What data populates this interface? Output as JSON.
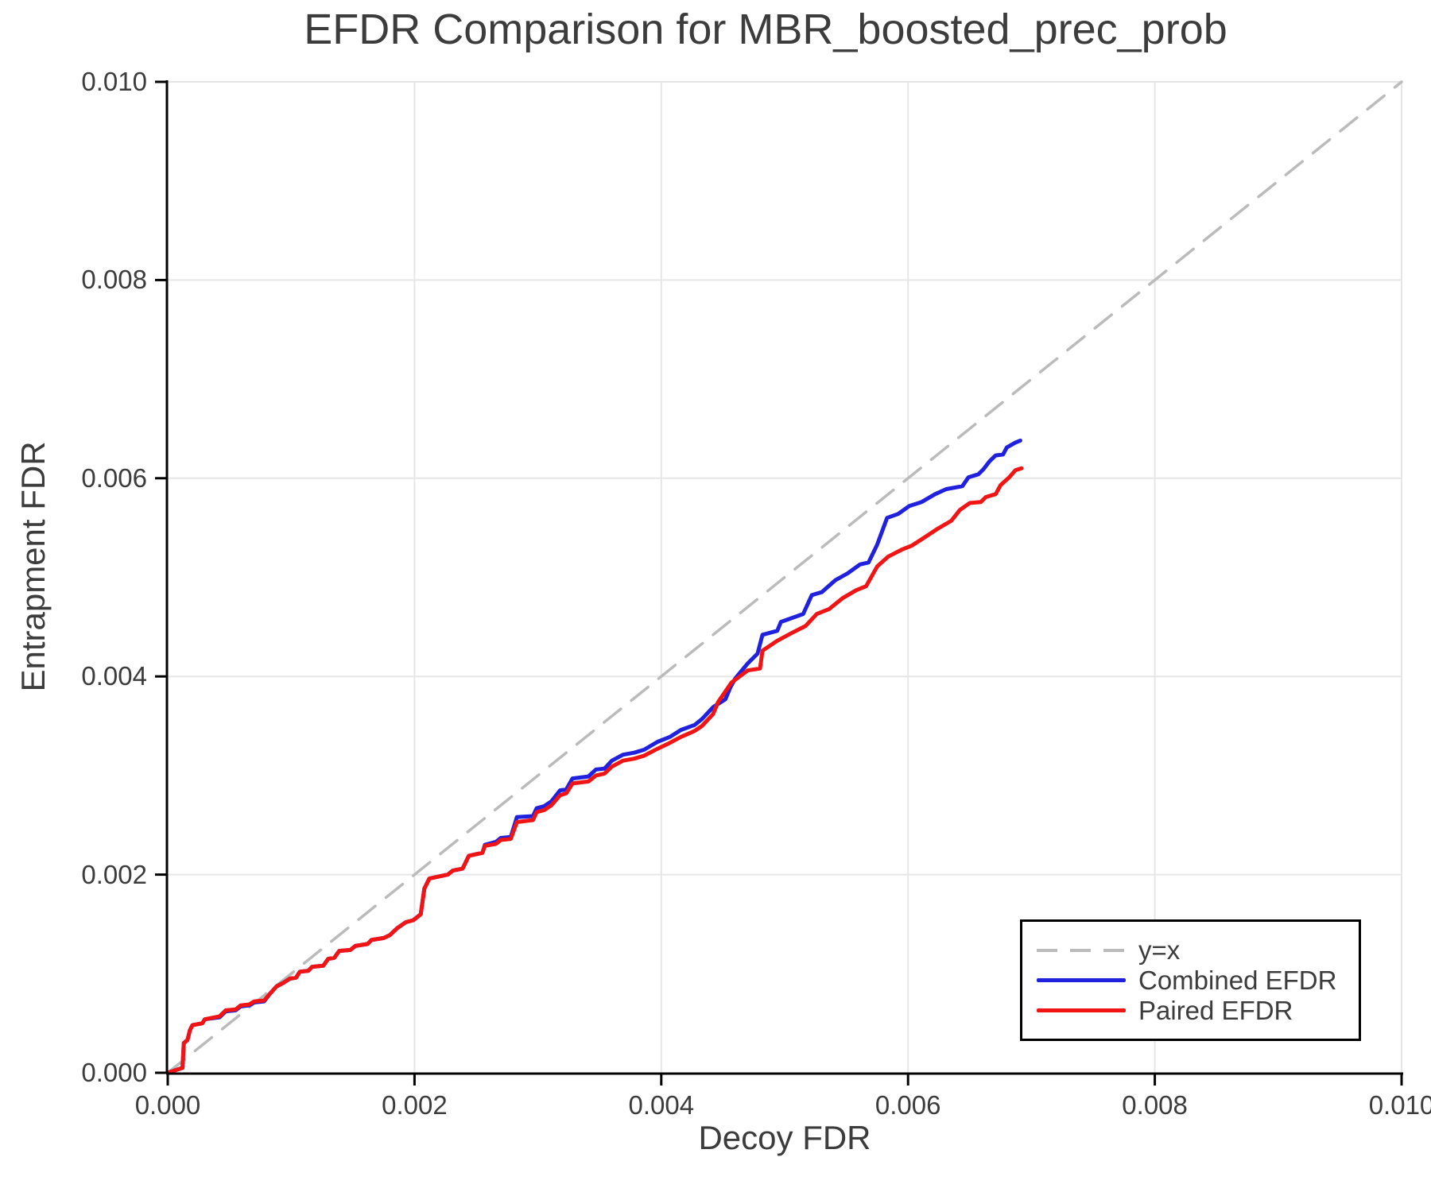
{
  "title": "EFDR Comparison for MBR_boosted_prec_prob",
  "chart_data": {
    "type": "line",
    "title": "EFDR Comparison for MBR_boosted_prec_prob",
    "xlabel": "Decoy FDR",
    "ylabel": "Entrapment FDR",
    "xlim": [
      0.0,
      0.01
    ],
    "ylim": [
      0.0,
      0.01
    ],
    "grid": true,
    "x_ticks": [
      {
        "value": 0.0,
        "label": "0.000"
      },
      {
        "value": 0.002,
        "label": "0.002"
      },
      {
        "value": 0.004,
        "label": "0.004"
      },
      {
        "value": 0.006,
        "label": "0.006"
      },
      {
        "value": 0.008,
        "label": "0.008"
      },
      {
        "value": 0.01,
        "label": "0.010"
      }
    ],
    "y_ticks": [
      {
        "value": 0.0,
        "label": "0.000"
      },
      {
        "value": 0.002,
        "label": "0.002"
      },
      {
        "value": 0.004,
        "label": "0.004"
      },
      {
        "value": 0.006,
        "label": "0.006"
      },
      {
        "value": 0.008,
        "label": "0.008"
      },
      {
        "value": 0.01,
        "label": "0.010"
      }
    ],
    "colors": {
      "grid": "#e6e6e6",
      "spine": "#000000",
      "text": "#3c3c3c",
      "diagonal": "#bbbbbb",
      "combined": "#2020df",
      "paired": "#f01414"
    },
    "legend": {
      "position": "bottom-right"
    },
    "series": [
      {
        "name": "y=x",
        "style": "dashed",
        "color": "#bbbbbb",
        "points": [
          [
            0.0,
            0.0
          ],
          [
            0.01,
            0.01
          ]
        ]
      },
      {
        "name": "Combined EFDR",
        "style": "solid",
        "color": "#2020df",
        "points": [
          [
            0.0,
            0.0
          ],
          [
            0.00012,
            5e-05
          ],
          [
            0.00013,
            0.0003
          ],
          [
            0.00016,
            0.00033
          ],
          [
            0.00018,
            0.00043
          ],
          [
            0.0002,
            0.00048
          ],
          [
            0.00028,
            0.0005
          ],
          [
            0.0003,
            0.00054
          ],
          [
            0.00042,
            0.00056
          ],
          [
            0.00047,
            0.00062
          ],
          [
            0.00055,
            0.00063
          ],
          [
            0.00059,
            0.00067
          ],
          [
            0.00066,
            0.00068
          ],
          [
            0.0007,
            0.00071
          ],
          [
            0.00078,
            0.00072
          ],
          [
            0.00083,
            0.0008
          ],
          [
            0.00088,
            0.00087
          ],
          [
            0.00094,
            0.00091
          ],
          [
            0.00099,
            0.00095
          ],
          [
            0.00104,
            0.00096
          ],
          [
            0.00107,
            0.00102
          ],
          [
            0.00114,
            0.00103
          ],
          [
            0.00117,
            0.00107
          ],
          [
            0.00126,
            0.00108
          ],
          [
            0.0013,
            0.00115
          ],
          [
            0.00135,
            0.00116
          ],
          [
            0.00139,
            0.00123
          ],
          [
            0.00148,
            0.00124
          ],
          [
            0.00152,
            0.00128
          ],
          [
            0.00162,
            0.0013
          ],
          [
            0.00165,
            0.00134
          ],
          [
            0.00175,
            0.00136
          ],
          [
            0.0018,
            0.00139
          ],
          [
            0.00186,
            0.00146
          ],
          [
            0.00193,
            0.00152
          ],
          [
            0.00199,
            0.00154
          ],
          [
            0.00205,
            0.0016
          ],
          [
            0.00208,
            0.00186
          ],
          [
            0.00212,
            0.00196
          ],
          [
            0.00227,
            0.002
          ],
          [
            0.00231,
            0.00204
          ],
          [
            0.00239,
            0.00206
          ],
          [
            0.00244,
            0.00219
          ],
          [
            0.00255,
            0.00222
          ],
          [
            0.00257,
            0.0023
          ],
          [
            0.00266,
            0.00233
          ],
          [
            0.0027,
            0.00237
          ],
          [
            0.00278,
            0.00238
          ],
          [
            0.00283,
            0.00258
          ],
          [
            0.00296,
            0.00259
          ],
          [
            0.00299,
            0.00267
          ],
          [
            0.00305,
            0.00269
          ],
          [
            0.00311,
            0.00274
          ],
          [
            0.00318,
            0.00285
          ],
          [
            0.00323,
            0.00286
          ],
          [
            0.00328,
            0.00297
          ],
          [
            0.00341,
            0.00299
          ],
          [
            0.00347,
            0.00306
          ],
          [
            0.00354,
            0.00307
          ],
          [
            0.0036,
            0.00315
          ],
          [
            0.00369,
            0.00321
          ],
          [
            0.00378,
            0.00323
          ],
          [
            0.00386,
            0.00326
          ],
          [
            0.00397,
            0.00334
          ],
          [
            0.00407,
            0.00339
          ],
          [
            0.00416,
            0.00346
          ],
          [
            0.00427,
            0.00351
          ],
          [
            0.00433,
            0.00357
          ],
          [
            0.00442,
            0.00369
          ],
          [
            0.00452,
            0.00377
          ],
          [
            0.00456,
            0.00389
          ],
          [
            0.0046,
            0.00398
          ],
          [
            0.0047,
            0.00413
          ],
          [
            0.00478,
            0.00423
          ],
          [
            0.00482,
            0.00442
          ],
          [
            0.00494,
            0.00446
          ],
          [
            0.00497,
            0.00455
          ],
          [
            0.00506,
            0.00459
          ],
          [
            0.00515,
            0.00463
          ],
          [
            0.00522,
            0.00482
          ],
          [
            0.0053,
            0.00485
          ],
          [
            0.00541,
            0.00497
          ],
          [
            0.00551,
            0.00504
          ],
          [
            0.00561,
            0.00513
          ],
          [
            0.00568,
            0.00515
          ],
          [
            0.00575,
            0.00533
          ],
          [
            0.00583,
            0.0056
          ],
          [
            0.00592,
            0.00564
          ],
          [
            0.00601,
            0.00572
          ],
          [
            0.00611,
            0.00576
          ],
          [
            0.00622,
            0.00584
          ],
          [
            0.00631,
            0.00589
          ],
          [
            0.00644,
            0.00592
          ],
          [
            0.00649,
            0.00601
          ],
          [
            0.00657,
            0.00604
          ],
          [
            0.00661,
            0.00609
          ],
          [
            0.00666,
            0.00617
          ],
          [
            0.00671,
            0.00623
          ],
          [
            0.00677,
            0.00624
          ],
          [
            0.0068,
            0.00631
          ],
          [
            0.00687,
            0.00636
          ],
          [
            0.00691,
            0.00638
          ]
        ]
      },
      {
        "name": "Paired EFDR",
        "style": "solid",
        "color": "#f01414",
        "points": [
          [
            0.0,
            0.0
          ],
          [
            0.00012,
            5e-05
          ],
          [
            0.00013,
            0.0003
          ],
          [
            0.00016,
            0.00033
          ],
          [
            0.00018,
            0.00043
          ],
          [
            0.0002,
            0.00048
          ],
          [
            0.00028,
            0.0005
          ],
          [
            0.0003,
            0.00054
          ],
          [
            0.00042,
            0.00057
          ],
          [
            0.00047,
            0.00063
          ],
          [
            0.00055,
            0.00064
          ],
          [
            0.00059,
            0.00068
          ],
          [
            0.00066,
            0.00069
          ],
          [
            0.0007,
            0.00072
          ],
          [
            0.00078,
            0.00073
          ],
          [
            0.00083,
            0.0008
          ],
          [
            0.00088,
            0.00087
          ],
          [
            0.00094,
            0.00091
          ],
          [
            0.00099,
            0.00095
          ],
          [
            0.00104,
            0.00096
          ],
          [
            0.00107,
            0.00102
          ],
          [
            0.00114,
            0.00103
          ],
          [
            0.00117,
            0.00107
          ],
          [
            0.00126,
            0.00108
          ],
          [
            0.0013,
            0.00115
          ],
          [
            0.00135,
            0.00116
          ],
          [
            0.00139,
            0.00123
          ],
          [
            0.00148,
            0.00124
          ],
          [
            0.00152,
            0.00128
          ],
          [
            0.00162,
            0.0013
          ],
          [
            0.00165,
            0.00134
          ],
          [
            0.00175,
            0.00136
          ],
          [
            0.0018,
            0.00139
          ],
          [
            0.00186,
            0.00146
          ],
          [
            0.00193,
            0.00152
          ],
          [
            0.00199,
            0.00154
          ],
          [
            0.00205,
            0.0016
          ],
          [
            0.00208,
            0.00186
          ],
          [
            0.00212,
            0.00196
          ],
          [
            0.00227,
            0.002
          ],
          [
            0.00231,
            0.00204
          ],
          [
            0.00239,
            0.00206
          ],
          [
            0.00244,
            0.00219
          ],
          [
            0.00255,
            0.00222
          ],
          [
            0.00257,
            0.00229
          ],
          [
            0.00266,
            0.00231
          ],
          [
            0.0027,
            0.00235
          ],
          [
            0.00278,
            0.00236
          ],
          [
            0.00283,
            0.00253
          ],
          [
            0.00296,
            0.00255
          ],
          [
            0.00299,
            0.00263
          ],
          [
            0.00305,
            0.00265
          ],
          [
            0.00311,
            0.0027
          ],
          [
            0.00318,
            0.0028
          ],
          [
            0.00323,
            0.00282
          ],
          [
            0.00328,
            0.00292
          ],
          [
            0.00341,
            0.00294
          ],
          [
            0.00347,
            0.003
          ],
          [
            0.00354,
            0.00302
          ],
          [
            0.0036,
            0.00309
          ],
          [
            0.00369,
            0.00315
          ],
          [
            0.00378,
            0.00317
          ],
          [
            0.00386,
            0.0032
          ],
          [
            0.00397,
            0.00327
          ],
          [
            0.00407,
            0.00333
          ],
          [
            0.00416,
            0.00339
          ],
          [
            0.00427,
            0.00345
          ],
          [
            0.00433,
            0.0035
          ],
          [
            0.00442,
            0.00362
          ],
          [
            0.00446,
            0.00374
          ],
          [
            0.00457,
            0.00394
          ],
          [
            0.0047,
            0.00406
          ],
          [
            0.0048,
            0.00408
          ],
          [
            0.00482,
            0.00426
          ],
          [
            0.00494,
            0.00436
          ],
          [
            0.00506,
            0.00444
          ],
          [
            0.00517,
            0.00451
          ],
          [
            0.00526,
            0.00463
          ],
          [
            0.00536,
            0.00468
          ],
          [
            0.00547,
            0.00479
          ],
          [
            0.00558,
            0.00487
          ],
          [
            0.00566,
            0.00491
          ],
          [
            0.00575,
            0.00511
          ],
          [
            0.00584,
            0.00521
          ],
          [
            0.00595,
            0.00528
          ],
          [
            0.00603,
            0.00532
          ],
          [
            0.00613,
            0.0054
          ],
          [
            0.00624,
            0.00549
          ],
          [
            0.00635,
            0.00557
          ],
          [
            0.00642,
            0.00568
          ],
          [
            0.0065,
            0.00575
          ],
          [
            0.00659,
            0.00576
          ],
          [
            0.00663,
            0.00581
          ],
          [
            0.00671,
            0.00584
          ],
          [
            0.00675,
            0.00593
          ],
          [
            0.00682,
            0.00601
          ],
          [
            0.00687,
            0.00608
          ],
          [
            0.00692,
            0.0061
          ]
        ]
      }
    ]
  }
}
